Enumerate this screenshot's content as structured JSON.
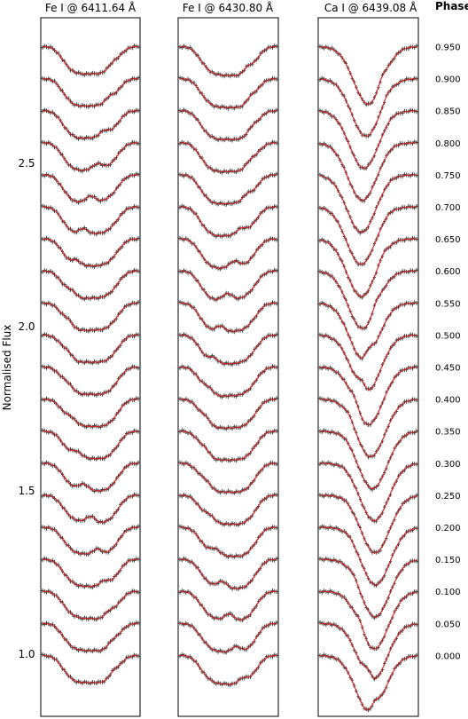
{
  "chart_data": {
    "type": "line",
    "ylabel": "Normalised Flux",
    "ylim": [
      0.81,
      2.99
    ],
    "y_ticks": [
      "1.0",
      "1.5",
      "2.0",
      "2.5"
    ],
    "y_tick_values": [
      1.0,
      1.5,
      2.0,
      2.5
    ],
    "phase_header": "Phase",
    "phases": [
      "0.000",
      "0.050",
      "0.100",
      "0.150",
      "0.200",
      "0.250",
      "0.300",
      "0.350",
      "0.400",
      "0.450",
      "0.500",
      "0.550",
      "0.600",
      "0.650",
      "0.700",
      "0.750",
      "0.800",
      "0.850",
      "0.900",
      "0.950"
    ],
    "phase_values": [
      0.0,
      0.05,
      0.1,
      0.15,
      0.2,
      0.25,
      0.3,
      0.35,
      0.4,
      0.45,
      0.5,
      0.55,
      0.6,
      0.65,
      0.7,
      0.75,
      0.8,
      0.85,
      0.9,
      0.95
    ],
    "profile_offset_step": 0.1,
    "continuum_level": 1.0,
    "panels": [
      {
        "title": "Fe I @ 6411.64 Å",
        "line_depth": 0.085
      },
      {
        "title": "Fe I @ 6430.80 Å",
        "line_depth": 0.09
      },
      {
        "title": "Ca I @ 6439.08 Å",
        "line_depth": 0.18
      }
    ],
    "series": [
      {
        "name": "",
        "style": "observed",
        "color": "#404040"
      },
      {
        "name": "",
        "style": "model",
        "color": "#d42020"
      }
    ],
    "colors": {
      "frame": "#000000",
      "observed": "#404040",
      "model": "#d42020"
    }
  }
}
